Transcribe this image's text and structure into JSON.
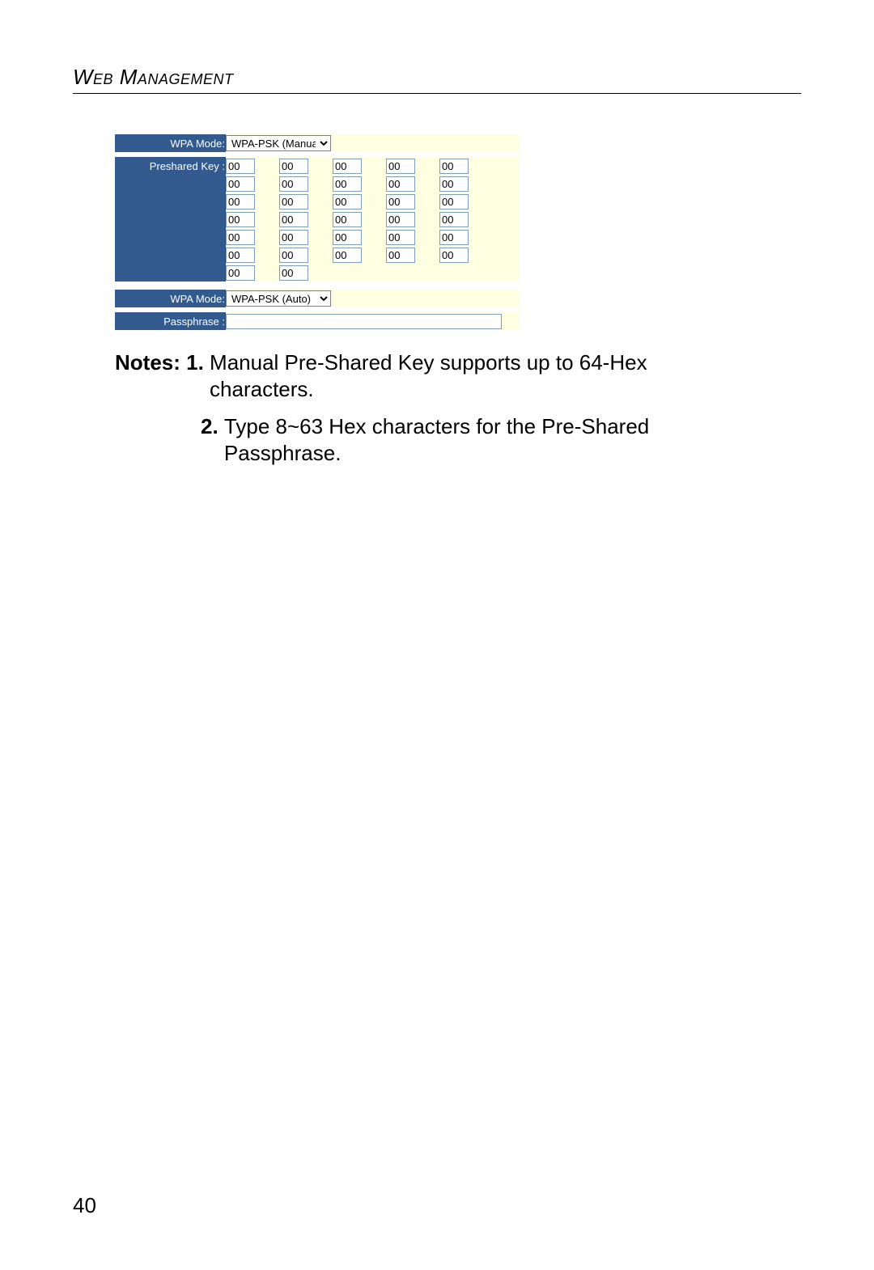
{
  "header": {
    "title": "Web Management"
  },
  "panel": {
    "colors": {
      "label_bg": "#335a8f",
      "label_text": "#ffffff",
      "input_bg": "#fefee0",
      "field_border": "#7f9db9"
    },
    "wpa_mode_label": "WPA Mode:",
    "wpa_mode_manual": "WPA-PSK (Manual)",
    "preshared_key_label": "Preshared Key :",
    "hex_default": "00",
    "hex_rows": [
      5,
      5,
      5,
      5,
      5,
      5,
      2
    ],
    "wpa_mode_auto": "WPA-PSK (Auto)",
    "passphrase_label": "Passphrase :",
    "passphrase_value": ""
  },
  "notes": {
    "lead": "Notes: ",
    "items": [
      {
        "num": "1.",
        "text": "Manual Pre-Shared Key supports up to 64-Hex characters."
      },
      {
        "num": "2.",
        "text": "Type 8~63 Hex characters for the Pre-Shared Passphrase."
      }
    ]
  },
  "page_number": "40"
}
